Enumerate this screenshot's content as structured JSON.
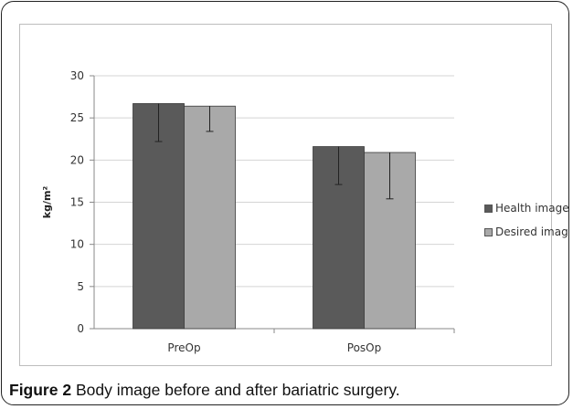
{
  "caption": {
    "label": "Figure 2",
    "text": " Body image before and after bariatric surgery."
  },
  "chart_data": {
    "type": "bar",
    "categories": [
      "PreOp",
      "PosOp"
    ],
    "series": [
      {
        "name": "Health image",
        "color": "#5a5a5a",
        "values": [
          26.7,
          21.6
        ],
        "error_low": [
          22.2,
          17.1
        ],
        "error_high": [
          26.7,
          21.6
        ]
      },
      {
        "name": "Desired image",
        "color": "#a9a9a9",
        "values": [
          26.4,
          20.9
        ],
        "error_low": [
          23.4,
          15.4
        ],
        "error_high": [
          26.4,
          20.9
        ]
      }
    ],
    "ylabel": "kg/m²",
    "xlabel": "",
    "title": "",
    "ylim": [
      0,
      30
    ],
    "yticks": [
      0,
      5,
      10,
      15,
      20,
      25,
      30
    ],
    "grid": true,
    "legend_position": "right"
  }
}
